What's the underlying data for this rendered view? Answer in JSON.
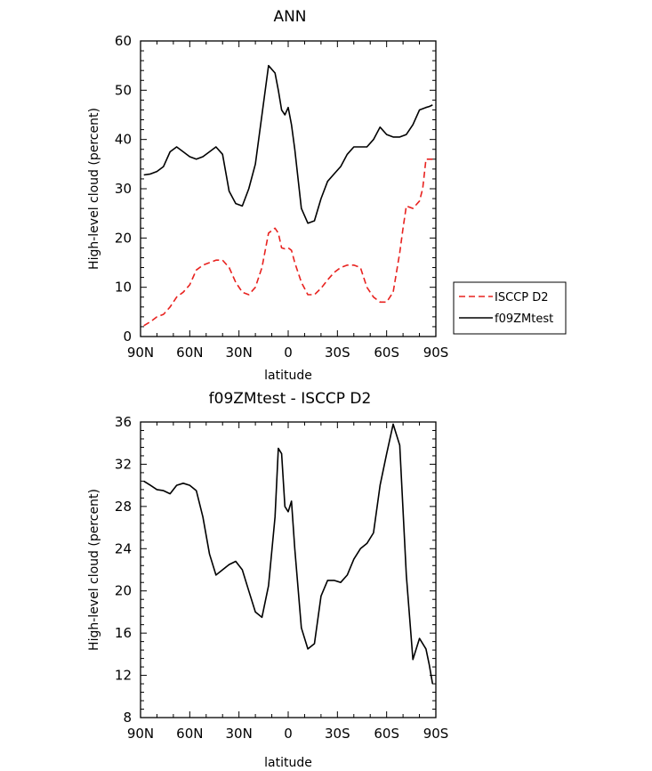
{
  "chart_data": [
    {
      "type": "line",
      "title": "ANN",
      "xlabel": "latitude",
      "ylabel": "High-level cloud (percent)",
      "xlim": [
        -90,
        90
      ],
      "ylim": [
        0,
        60
      ],
      "xticks": [
        {
          "v": -90,
          "label": "90N"
        },
        {
          "v": -60,
          "label": "60N"
        },
        {
          "v": -30,
          "label": "30N"
        },
        {
          "v": 0,
          "label": "0"
        },
        {
          "v": 30,
          "label": "30S"
        },
        {
          "v": 60,
          "label": "60S"
        },
        {
          "v": 90,
          "label": "90S"
        }
      ],
      "yticks": [
        0,
        10,
        20,
        30,
        40,
        50,
        60
      ],
      "legend_position": "outside-right",
      "series": [
        {
          "name": "ISCCP D2",
          "color": "#e8221f",
          "dash": "dashed",
          "x": [
            -88,
            -84,
            -80,
            -76,
            -72,
            -68,
            -64,
            -60,
            -56,
            -52,
            -48,
            -44,
            -40,
            -36,
            -32,
            -28,
            -24,
            -20,
            -16,
            -12,
            -8,
            -6,
            -4,
            -2,
            0,
            2,
            4,
            8,
            12,
            16,
            20,
            24,
            28,
            32,
            36,
            40,
            44,
            48,
            52,
            56,
            60,
            64,
            68,
            70,
            72,
            76,
            80,
            82,
            84,
            86,
            88
          ],
          "y": [
            2.2,
            3,
            4,
            4.5,
            6,
            8,
            9,
            10.5,
            13.5,
            14.5,
            15,
            15.5,
            15.5,
            14,
            11,
            9,
            8.5,
            10,
            14,
            21,
            22,
            21,
            18,
            17.8,
            18,
            17.5,
            15,
            11,
            8.5,
            8.5,
            9.8,
            11.5,
            13,
            14,
            14.5,
            14.5,
            14,
            10,
            8,
            7,
            7,
            9,
            17,
            22,
            26.5,
            26,
            27.5,
            30,
            36,
            36,
            36
          ]
        },
        {
          "name": "f09ZMtest",
          "color": "#000000",
          "dash": "solid",
          "x": [
            -88,
            -84,
            -80,
            -76,
            -72,
            -68,
            -64,
            -60,
            -56,
            -52,
            -48,
            -44,
            -40,
            -36,
            -32,
            -28,
            -24,
            -20,
            -16,
            -12,
            -8,
            -6,
            -4,
            -2,
            0,
            2,
            4,
            8,
            12,
            16,
            20,
            24,
            28,
            32,
            36,
            40,
            44,
            48,
            52,
            56,
            60,
            64,
            68,
            72,
            76,
            80,
            84,
            86,
            88
          ],
          "y": [
            32.8,
            33,
            33.5,
            34.5,
            37.5,
            38.5,
            37.5,
            36.5,
            36,
            36.5,
            37.5,
            38.5,
            37,
            29.5,
            27,
            26.5,
            30,
            35,
            45,
            55,
            53.5,
            50,
            46,
            45,
            46.5,
            43,
            38,
            26,
            23,
            23.5,
            28,
            31.5,
            33,
            34.5,
            37,
            38.5,
            38.5,
            38.5,
            40,
            42.5,
            41,
            40.5,
            40.5,
            41,
            43,
            46,
            46.5,
            46.7,
            47
          ]
        }
      ]
    },
    {
      "type": "line",
      "title": "f09ZMtest - ISCCP D2",
      "xlabel": "latitude",
      "ylabel": "High-level cloud (percent)",
      "xlim": [
        -90,
        90
      ],
      "ylim": [
        8,
        36
      ],
      "xticks": [
        {
          "v": -90,
          "label": "90N"
        },
        {
          "v": -60,
          "label": "60N"
        },
        {
          "v": -30,
          "label": "30N"
        },
        {
          "v": 0,
          "label": "0"
        },
        {
          "v": 30,
          "label": "30S"
        },
        {
          "v": 60,
          "label": "60S"
        },
        {
          "v": 90,
          "label": "90S"
        }
      ],
      "yticks": [
        8,
        12,
        16,
        20,
        24,
        28,
        32,
        36
      ],
      "series": [
        {
          "color": "#000000",
          "dash": "solid",
          "x": [
            -88,
            -84,
            -80,
            -76,
            -72,
            -68,
            -64,
            -60,
            -56,
            -52,
            -48,
            -44,
            -40,
            -36,
            -32,
            -28,
            -24,
            -20,
            -16,
            -12,
            -8,
            -6,
            -4,
            -2,
            0,
            2,
            4,
            8,
            12,
            16,
            20,
            24,
            28,
            32,
            36,
            40,
            44,
            48,
            52,
            56,
            60,
            64,
            68,
            72,
            76,
            80,
            84,
            86,
            88
          ],
          "y": [
            30.4,
            30,
            29.6,
            29.5,
            29.2,
            30,
            30.2,
            30,
            29.5,
            27,
            23.5,
            21.5,
            22,
            22.5,
            22.8,
            22,
            20,
            18,
            17.5,
            20.5,
            27,
            33.5,
            33,
            28,
            27.5,
            28.5,
            24,
            16.5,
            14.5,
            15,
            19.5,
            21,
            21,
            20.8,
            21.5,
            23,
            24,
            24.5,
            25.5,
            30,
            33,
            35.8,
            33.8,
            21.5,
            13.5,
            15.5,
            14.5,
            13,
            11.2
          ]
        }
      ]
    }
  ]
}
